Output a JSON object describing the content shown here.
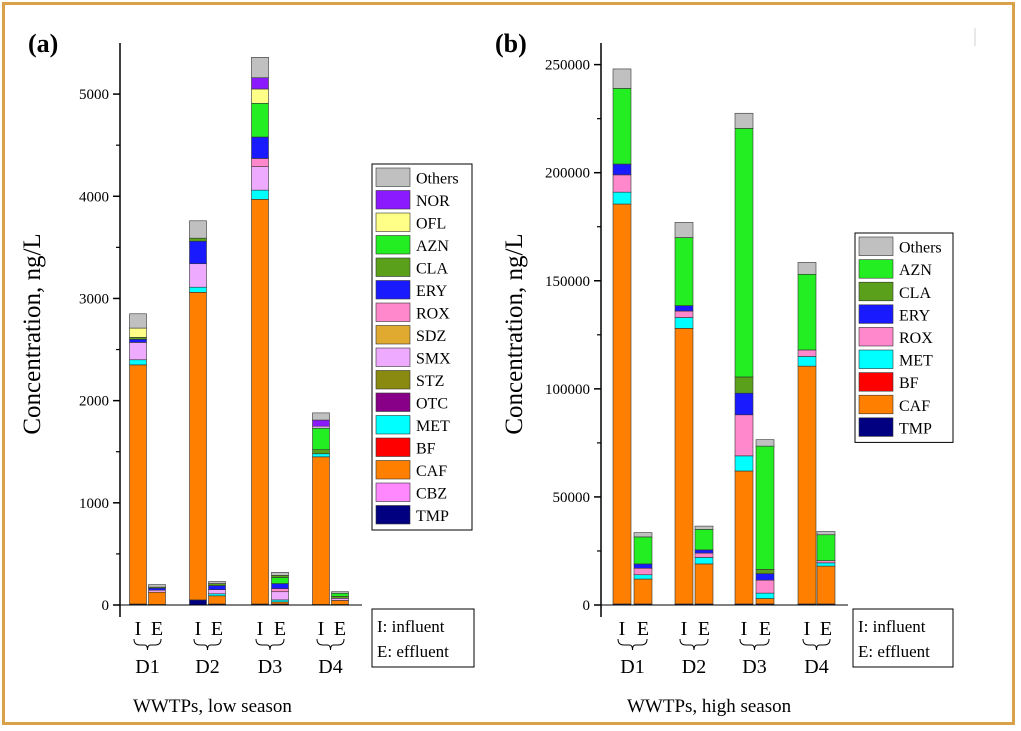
{
  "frame_color": "#d9a14a",
  "compound_colors": {
    "Others": "#c0c0c0",
    "NOR": "#8b1aff",
    "OFL": "#ffff88",
    "AZN": "#22ee22",
    "CLA": "#5aa01a",
    "ERY": "#1a1aff",
    "ROX": "#ff88cc",
    "SDZ": "#e0aa30",
    "SMX": "#eeaaff",
    "STZ": "#8a8a10",
    "OTC": "#880088",
    "MET": "#00ffff",
    "BF": "#ff0000",
    "CAF": "#ff8000",
    "CBZ": "#ff88ff",
    "TMP": "#000080"
  },
  "chart_data": [
    {
      "type": "bar",
      "stacked": true,
      "panel_label": "(a)",
      "ylabel": "Concentration, ng/L",
      "xlabel": "WWTPs, low season",
      "ylim": [
        0,
        5500
      ],
      "yticks": [
        0,
        1000,
        2000,
        3000,
        4000,
        5000
      ],
      "ytick_labels": [
        "0",
        "1000",
        "2000",
        "3000",
        "4000",
        "5000"
      ],
      "groups": [
        "D1",
        "D2",
        "D3",
        "D4"
      ],
      "bar_labels": [
        "I",
        "E"
      ],
      "legend": [
        "Others",
        "NOR",
        "OFL",
        "AZN",
        "CLA",
        "ERY",
        "ROX",
        "SDZ",
        "SMX",
        "STZ",
        "OTC",
        "MET",
        "BF",
        "CAF",
        "CBZ",
        "TMP"
      ],
      "note": [
        "I: influent",
        "E: effluent"
      ],
      "bars": [
        {
          "group": "D1",
          "kind": "I",
          "stack": [
            [
              "TMP",
              10
            ],
            [
              "CAF",
              2340
            ],
            [
              "MET",
              50
            ],
            [
              "SMX",
              170
            ],
            [
              "ERY",
              30
            ],
            [
              "CLA",
              20
            ],
            [
              "OFL",
              90
            ],
            [
              "Others",
              140
            ]
          ]
        },
        {
          "group": "D1",
          "kind": "E",
          "stack": [
            [
              "TMP",
              5
            ],
            [
              "CAF",
              120
            ],
            [
              "SMX",
              20
            ],
            [
              "ERY",
              20
            ],
            [
              "CLA",
              10
            ],
            [
              "Others",
              25
            ]
          ]
        },
        {
          "group": "D2",
          "kind": "I",
          "stack": [
            [
              "TMP",
              50
            ],
            [
              "CAF",
              3010
            ],
            [
              "MET",
              50
            ],
            [
              "SMX",
              230
            ],
            [
              "ERY",
              220
            ],
            [
              "CLA",
              30
            ],
            [
              "Others",
              170
            ]
          ]
        },
        {
          "group": "D2",
          "kind": "E",
          "stack": [
            [
              "TMP",
              10
            ],
            [
              "CAF",
              80
            ],
            [
              "MET",
              20
            ],
            [
              "SMX",
              40
            ],
            [
              "ERY",
              40
            ],
            [
              "CLA",
              20
            ],
            [
              "Others",
              20
            ]
          ]
        },
        {
          "group": "D3",
          "kind": "I",
          "stack": [
            [
              "TMP",
              10
            ],
            [
              "CAF",
              3960
            ],
            [
              "MET",
              90
            ],
            [
              "SMX",
              230
            ],
            [
              "ROX",
              80
            ],
            [
              "ERY",
              210
            ],
            [
              "AZN",
              330
            ],
            [
              "OFL",
              140
            ],
            [
              "NOR",
              110
            ],
            [
              "Others",
              200
            ]
          ]
        },
        {
          "group": "D3",
          "kind": "E",
          "stack": [
            [
              "TMP",
              10
            ],
            [
              "CAF",
              20
            ],
            [
              "MET",
              20
            ],
            [
              "SMX",
              80
            ],
            [
              "ROX",
              30
            ],
            [
              "ERY",
              50
            ],
            [
              "AZN",
              60
            ],
            [
              "CLA",
              20
            ],
            [
              "Others",
              30
            ]
          ]
        },
        {
          "group": "D4",
          "kind": "I",
          "stack": [
            [
              "TMP",
              5
            ],
            [
              "CAF",
              1445
            ],
            [
              "MET",
              30
            ],
            [
              "CLA",
              40
            ],
            [
              "AZN",
              210
            ],
            [
              "SMX",
              20
            ],
            [
              "NOR",
              60
            ],
            [
              "Others",
              70
            ]
          ]
        },
        {
          "group": "D4",
          "kind": "E",
          "stack": [
            [
              "TMP",
              5
            ],
            [
              "CAF",
              40
            ],
            [
              "SMX",
              20
            ],
            [
              "CLA",
              20
            ],
            [
              "AZN",
              30
            ],
            [
              "Others",
              15
            ]
          ]
        }
      ]
    },
    {
      "type": "bar",
      "stacked": true,
      "panel_label": "(b)",
      "ylabel": "Concentration, ng/L",
      "xlabel": "WWTPs, high season",
      "ylim": [
        0,
        260000
      ],
      "yticks": [
        0,
        50000,
        100000,
        150000,
        200000,
        250000
      ],
      "ytick_labels": [
        "0",
        "50000",
        "100000",
        "150000",
        "200000",
        "250000"
      ],
      "groups": [
        "D1",
        "D2",
        "D3",
        "D4"
      ],
      "bar_labels": [
        "I",
        "E"
      ],
      "legend": [
        "Others",
        "AZN",
        "CLA",
        "ERY",
        "ROX",
        "MET",
        "BF",
        "CAF",
        "TMP"
      ],
      "note": [
        "I: influent",
        "E: effluent"
      ],
      "bars": [
        {
          "group": "D1",
          "kind": "I",
          "stack": [
            [
              "TMP",
              500
            ],
            [
              "CAF",
              185000
            ],
            [
              "MET",
              5500
            ],
            [
              "ROX",
              8000
            ],
            [
              "ERY",
              5000
            ],
            [
              "AZN",
              35000
            ],
            [
              "Others",
              9000
            ]
          ]
        },
        {
          "group": "D1",
          "kind": "E",
          "stack": [
            [
              "TMP",
              500
            ],
            [
              "CAF",
              11500
            ],
            [
              "MET",
              2000
            ],
            [
              "ROX",
              3000
            ],
            [
              "ERY",
              2000
            ],
            [
              "AZN",
              12500
            ],
            [
              "Others",
              2000
            ]
          ]
        },
        {
          "group": "D2",
          "kind": "I",
          "stack": [
            [
              "TMP",
              500
            ],
            [
              "CAF",
              127500
            ],
            [
              "MET",
              5000
            ],
            [
              "ROX",
              3000
            ],
            [
              "ERY",
              2500
            ],
            [
              "AZN",
              31500
            ],
            [
              "Others",
              7000
            ]
          ]
        },
        {
          "group": "D2",
          "kind": "E",
          "stack": [
            [
              "TMP",
              500
            ],
            [
              "CAF",
              18500
            ],
            [
              "MET",
              3000
            ],
            [
              "ROX",
              2000
            ],
            [
              "ERY",
              1500
            ],
            [
              "AZN",
              9500
            ],
            [
              "Others",
              1500
            ]
          ]
        },
        {
          "group": "D3",
          "kind": "I",
          "stack": [
            [
              "TMP",
              500
            ],
            [
              "CAF",
              61500
            ],
            [
              "MET",
              7000
            ],
            [
              "ROX",
              19000
            ],
            [
              "ERY",
              10000
            ],
            [
              "CLA",
              7500
            ],
            [
              "AZN",
              115000
            ],
            [
              "Others",
              7000
            ]
          ]
        },
        {
          "group": "D3",
          "kind": "E",
          "stack": [
            [
              "TMP",
              500
            ],
            [
              "CAF",
              2500
            ],
            [
              "MET",
              2500
            ],
            [
              "ROX",
              6000
            ],
            [
              "ERY",
              3000
            ],
            [
              "CLA",
              2000
            ],
            [
              "AZN",
              57000
            ],
            [
              "Others",
              3000
            ]
          ]
        },
        {
          "group": "D4",
          "kind": "I",
          "stack": [
            [
              "TMP",
              500
            ],
            [
              "CAF",
              110000
            ],
            [
              "MET",
              4500
            ],
            [
              "ROX",
              3000
            ],
            [
              "AZN",
              35000
            ],
            [
              "Others",
              5500
            ]
          ]
        },
        {
          "group": "D4",
          "kind": "E",
          "stack": [
            [
              "TMP",
              500
            ],
            [
              "CAF",
              17500
            ],
            [
              "MET",
              1500
            ],
            [
              "ROX",
              1000
            ],
            [
              "AZN",
              12000
            ],
            [
              "Others",
              1500
            ]
          ]
        }
      ]
    }
  ]
}
